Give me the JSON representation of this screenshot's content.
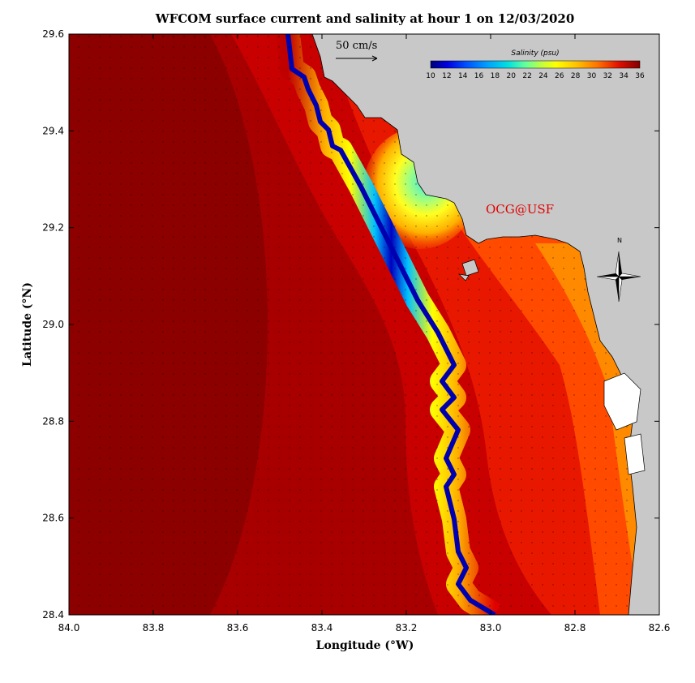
{
  "title": "WFCOM surface current and salinity at hour 1 on 12/03/2020",
  "xlabel": "Longitude (°W)",
  "ylabel": "Latitude (°N)",
  "credit": "OCG@USF",
  "north_label": "N",
  "colors": {
    "land": "#c8c8c8",
    "background": "#ffffff"
  },
  "chart_data": {
    "type": "heatmap",
    "map_extent": {
      "lon_west": 84.0,
      "lon_east": 82.6,
      "lat_south": 28.4,
      "lat_north": 29.6
    },
    "x_ticks": [
      "84.0",
      "83.8",
      "83.6",
      "83.4",
      "83.2",
      "83.0",
      "82.8",
      "82.6"
    ],
    "y_ticks": [
      "29.6",
      "29.4",
      "29.2",
      "29.0",
      "28.8",
      "28.6",
      "28.4"
    ],
    "grid": false,
    "colorbar": {
      "title": "Salinity (psu)",
      "range": [
        10,
        36
      ],
      "tick_labels": [
        "10",
        "12",
        "14",
        "16",
        "18",
        "20",
        "22",
        "24",
        "26",
        "28",
        "30",
        "32",
        "34",
        "36"
      ],
      "placement": "top-right"
    },
    "scale_vector": {
      "label": "50 cm/s",
      "value_cm_s": 50
    },
    "salinity_field_description_values": {
      "offshore_max_psu": 36,
      "nearshore_min_psu": 20
    }
  }
}
